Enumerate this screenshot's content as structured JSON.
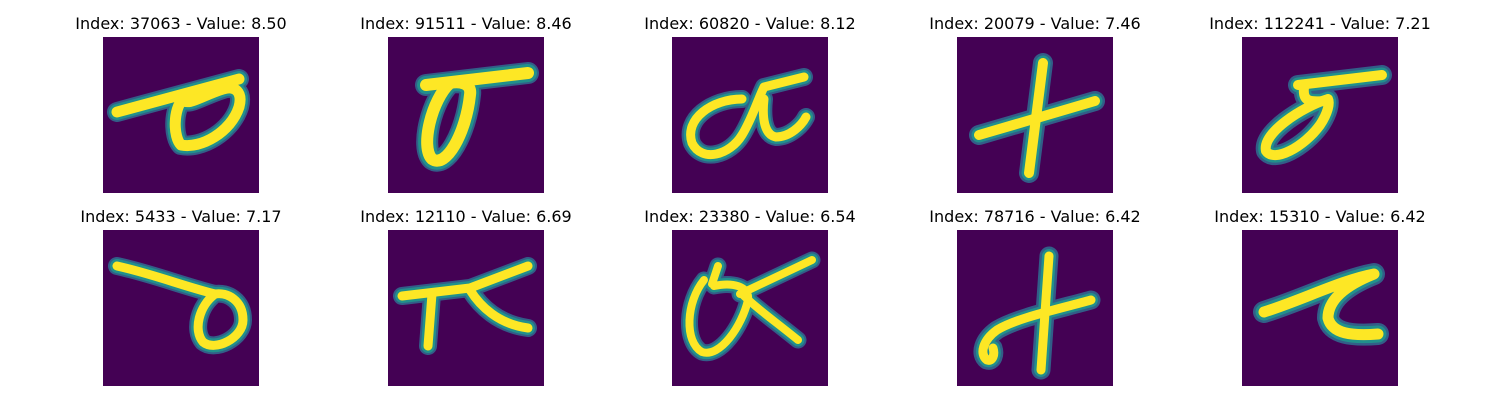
{
  "colors": {
    "background": "#440154",
    "low": "#31688e",
    "mid": "#21908c",
    "high": "#fde725"
  },
  "grid": [
    {
      "title": "Index: 37063 - Value: 8.50"
    },
    {
      "title": "Index: 91511 - Value: 8.46"
    },
    {
      "title": "Index: 60820 - Value: 8.12"
    },
    {
      "title": "Index: 20079 - Value: 7.46"
    },
    {
      "title": "Index: 112241 - Value: 7.21"
    },
    {
      "title": "Index: 5433 - Value: 7.17"
    },
    {
      "title": "Index: 12110 - Value: 6.69"
    },
    {
      "title": "Index: 23380 - Value: 6.54"
    },
    {
      "title": "Index: 78716 - Value: 6.42"
    },
    {
      "title": "Index: 15310 - Value: 6.42"
    }
  ]
}
